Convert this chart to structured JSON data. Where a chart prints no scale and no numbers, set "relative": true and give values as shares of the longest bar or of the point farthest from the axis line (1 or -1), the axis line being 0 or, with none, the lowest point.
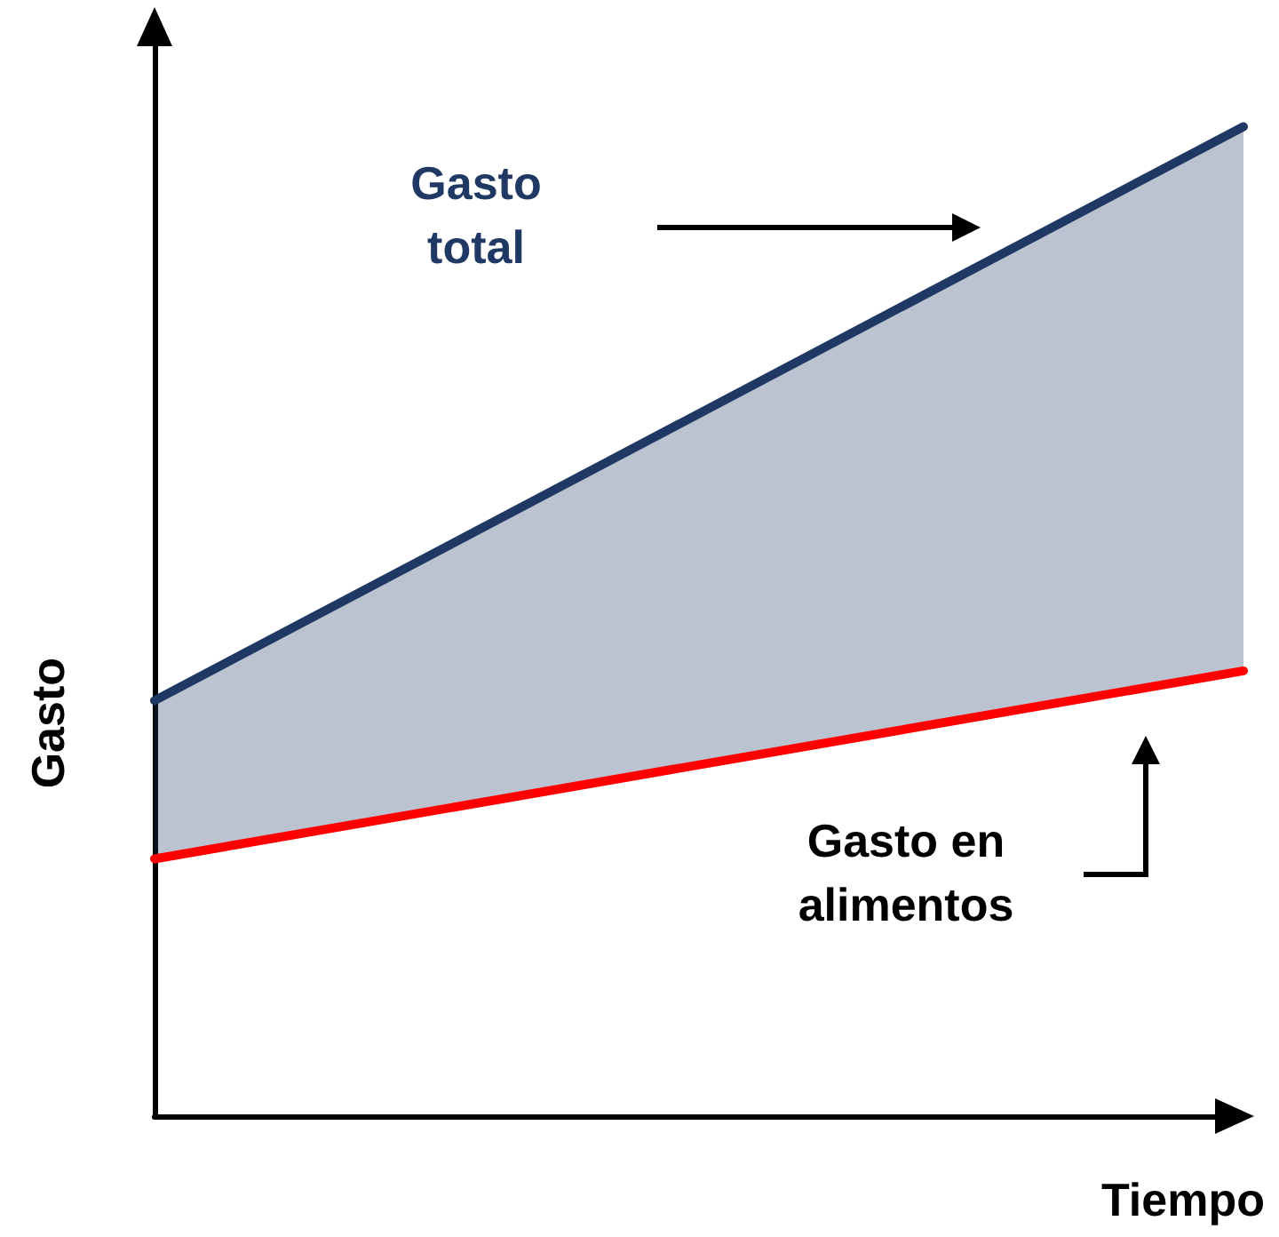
{
  "chart_data": {
    "type": "line",
    "relative": true,
    "xlabel": "Tiempo",
    "ylabel": "Gasto",
    "categories": [
      null,
      null
    ],
    "legend": false,
    "grid": false,
    "marker": "none",
    "line_style": "solid",
    "series": [
      {
        "name": "Gasto total",
        "color": "#1f3864",
        "values": [
          0.42,
          1.0
        ],
        "lower": [
          0.26,
          0.45
        ],
        "upper": [
          0.42,
          1.0
        ]
      },
      {
        "name": "Gasto en alimentos",
        "color": "#ff0000",
        "values": [
          0.26,
          0.45
        ]
      }
    ]
  }
}
